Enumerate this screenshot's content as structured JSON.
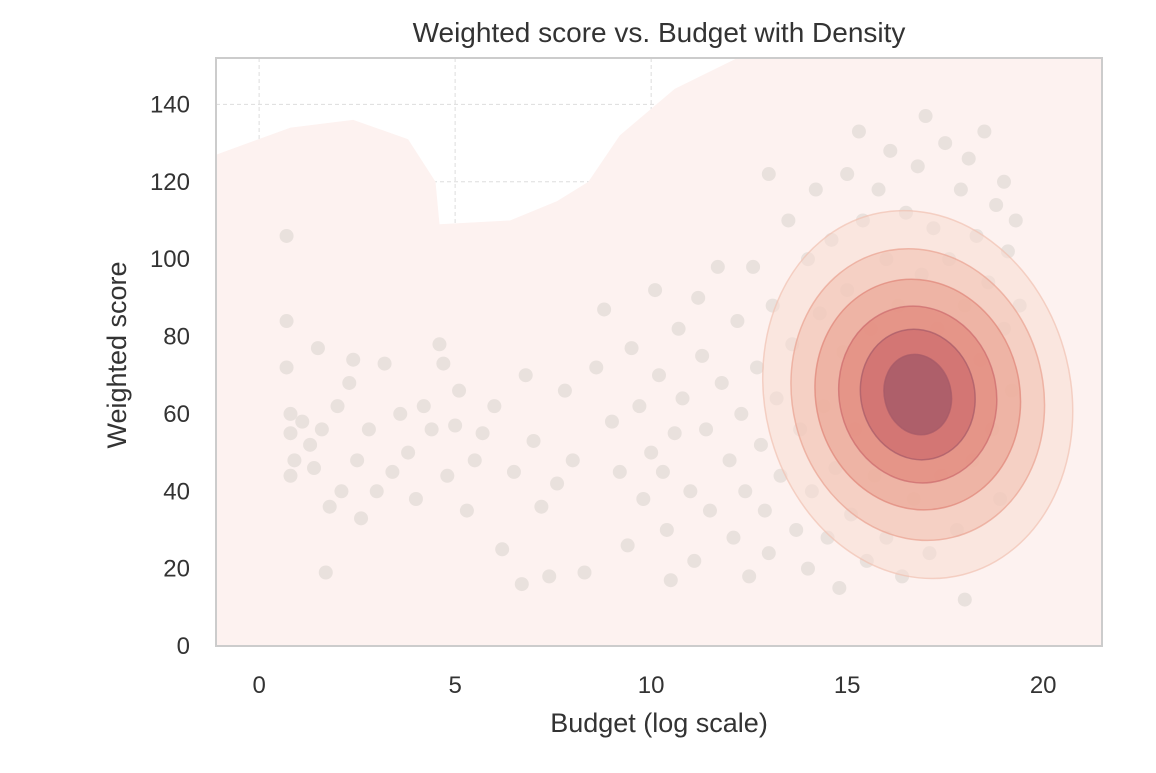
{
  "chart_data": {
    "type": "scatter",
    "title": "Weighted score vs. Budget with Density",
    "xlabel": "Budget (log scale)",
    "ylabel": "Weighted score",
    "xlim": [
      -1.1,
      21.5
    ],
    "ylim": [
      0,
      152
    ],
    "x_ticks": [
      0,
      5,
      10,
      15,
      20
    ],
    "y_ticks": [
      0,
      20,
      40,
      60,
      80,
      100,
      120,
      140
    ],
    "grid": true,
    "point_color": "#dcd6d0",
    "density_colors": [
      "#fdf2f0",
      "#f7dcd2",
      "#f1c2b2",
      "#eaa392",
      "#e08478",
      "#cc6a6c",
      "#a55a68"
    ],
    "density_center": [
      16.8,
      65
    ],
    "points": [
      [
        0.7,
        106
      ],
      [
        0.7,
        84
      ],
      [
        0.7,
        72
      ],
      [
        0.8,
        60
      ],
      [
        0.8,
        55
      ],
      [
        0.9,
        48
      ],
      [
        0.8,
        44
      ],
      [
        1.1,
        58
      ],
      [
        1.3,
        52
      ],
      [
        1.4,
        46
      ],
      [
        1.5,
        77
      ],
      [
        1.6,
        56
      ],
      [
        1.7,
        19
      ],
      [
        1.8,
        36
      ],
      [
        2.0,
        62
      ],
      [
        2.1,
        40
      ],
      [
        2.3,
        68
      ],
      [
        2.4,
        74
      ],
      [
        2.5,
        48
      ],
      [
        2.6,
        33
      ],
      [
        2.8,
        56
      ],
      [
        3.0,
        40
      ],
      [
        3.2,
        73
      ],
      [
        3.4,
        45
      ],
      [
        3.6,
        60
      ],
      [
        3.8,
        50
      ],
      [
        4.0,
        38
      ],
      [
        4.2,
        62
      ],
      [
        4.4,
        56
      ],
      [
        4.6,
        78
      ],
      [
        4.7,
        73
      ],
      [
        4.8,
        44
      ],
      [
        5.0,
        57
      ],
      [
        5.1,
        66
      ],
      [
        5.3,
        35
      ],
      [
        5.5,
        48
      ],
      [
        5.7,
        55
      ],
      [
        6.0,
        62
      ],
      [
        6.2,
        25
      ],
      [
        6.5,
        45
      ],
      [
        6.7,
        16
      ],
      [
        6.8,
        70
      ],
      [
        7.0,
        53
      ],
      [
        7.2,
        36
      ],
      [
        7.4,
        18
      ],
      [
        7.6,
        42
      ],
      [
        7.8,
        66
      ],
      [
        8.0,
        48
      ],
      [
        8.3,
        19
      ],
      [
        8.6,
        72
      ],
      [
        8.8,
        87
      ],
      [
        9.0,
        58
      ],
      [
        9.2,
        45
      ],
      [
        9.4,
        26
      ],
      [
        9.5,
        77
      ],
      [
        9.7,
        62
      ],
      [
        9.8,
        38
      ],
      [
        10.0,
        50
      ],
      [
        10.1,
        92
      ],
      [
        10.2,
        70
      ],
      [
        10.3,
        45
      ],
      [
        10.4,
        30
      ],
      [
        10.5,
        17
      ],
      [
        10.6,
        55
      ],
      [
        10.7,
        82
      ],
      [
        10.8,
        64
      ],
      [
        11.0,
        40
      ],
      [
        11.1,
        22
      ],
      [
        11.2,
        90
      ],
      [
        11.3,
        75
      ],
      [
        11.4,
        56
      ],
      [
        11.5,
        35
      ],
      [
        11.7,
        98
      ],
      [
        11.8,
        68
      ],
      [
        12.0,
        48
      ],
      [
        12.1,
        28
      ],
      [
        12.2,
        84
      ],
      [
        12.3,
        60
      ],
      [
        12.4,
        40
      ],
      [
        12.5,
        18
      ],
      [
        12.6,
        98
      ],
      [
        12.7,
        72
      ],
      [
        12.8,
        52
      ],
      [
        12.9,
        35
      ],
      [
        13.0,
        24
      ],
      [
        13.0,
        122
      ],
      [
        13.1,
        88
      ],
      [
        13.2,
        64
      ],
      [
        13.3,
        44
      ],
      [
        13.5,
        110
      ],
      [
        13.6,
        78
      ],
      [
        13.7,
        30
      ],
      [
        13.8,
        56
      ],
      [
        14.0,
        100
      ],
      [
        14.0,
        20
      ],
      [
        14.1,
        40
      ],
      [
        14.2,
        118
      ],
      [
        14.3,
        86
      ],
      [
        14.4,
        62
      ],
      [
        14.5,
        28
      ],
      [
        14.6,
        105
      ],
      [
        14.7,
        46
      ],
      [
        14.8,
        15
      ],
      [
        14.9,
        76
      ],
      [
        15.0,
        122
      ],
      [
        15.0,
        92
      ],
      [
        15.1,
        34
      ],
      [
        15.2,
        56
      ],
      [
        15.3,
        133
      ],
      [
        15.4,
        110
      ],
      [
        15.5,
        22
      ],
      [
        15.6,
        82
      ],
      [
        15.7,
        44
      ],
      [
        15.8,
        118
      ],
      [
        15.9,
        68
      ],
      [
        16.0,
        100
      ],
      [
        16.0,
        28
      ],
      [
        16.1,
        128
      ],
      [
        16.2,
        52
      ],
      [
        16.3,
        88
      ],
      [
        16.4,
        18
      ],
      [
        16.5,
        112
      ],
      [
        16.6,
        76
      ],
      [
        16.7,
        38
      ],
      [
        16.8,
        124
      ],
      [
        16.9,
        96
      ],
      [
        17.0,
        137
      ],
      [
        17.0,
        56
      ],
      [
        17.1,
        24
      ],
      [
        17.2,
        108
      ],
      [
        17.3,
        82
      ],
      [
        17.4,
        44
      ],
      [
        17.5,
        130
      ],
      [
        17.6,
        100
      ],
      [
        17.7,
        64
      ],
      [
        17.8,
        30
      ],
      [
        17.9,
        118
      ],
      [
        18.0,
        12
      ],
      [
        18.0,
        88
      ],
      [
        18.1,
        126
      ],
      [
        18.2,
        48
      ],
      [
        18.3,
        106
      ],
      [
        18.4,
        74
      ],
      [
        18.5,
        133
      ],
      [
        18.6,
        94
      ],
      [
        18.7,
        56
      ],
      [
        18.8,
        114
      ],
      [
        18.9,
        38
      ],
      [
        19.0,
        120
      ],
      [
        19.0,
        82
      ],
      [
        19.1,
        102
      ],
      [
        19.2,
        66
      ],
      [
        19.3,
        110
      ],
      [
        19.4,
        88
      ]
    ]
  }
}
